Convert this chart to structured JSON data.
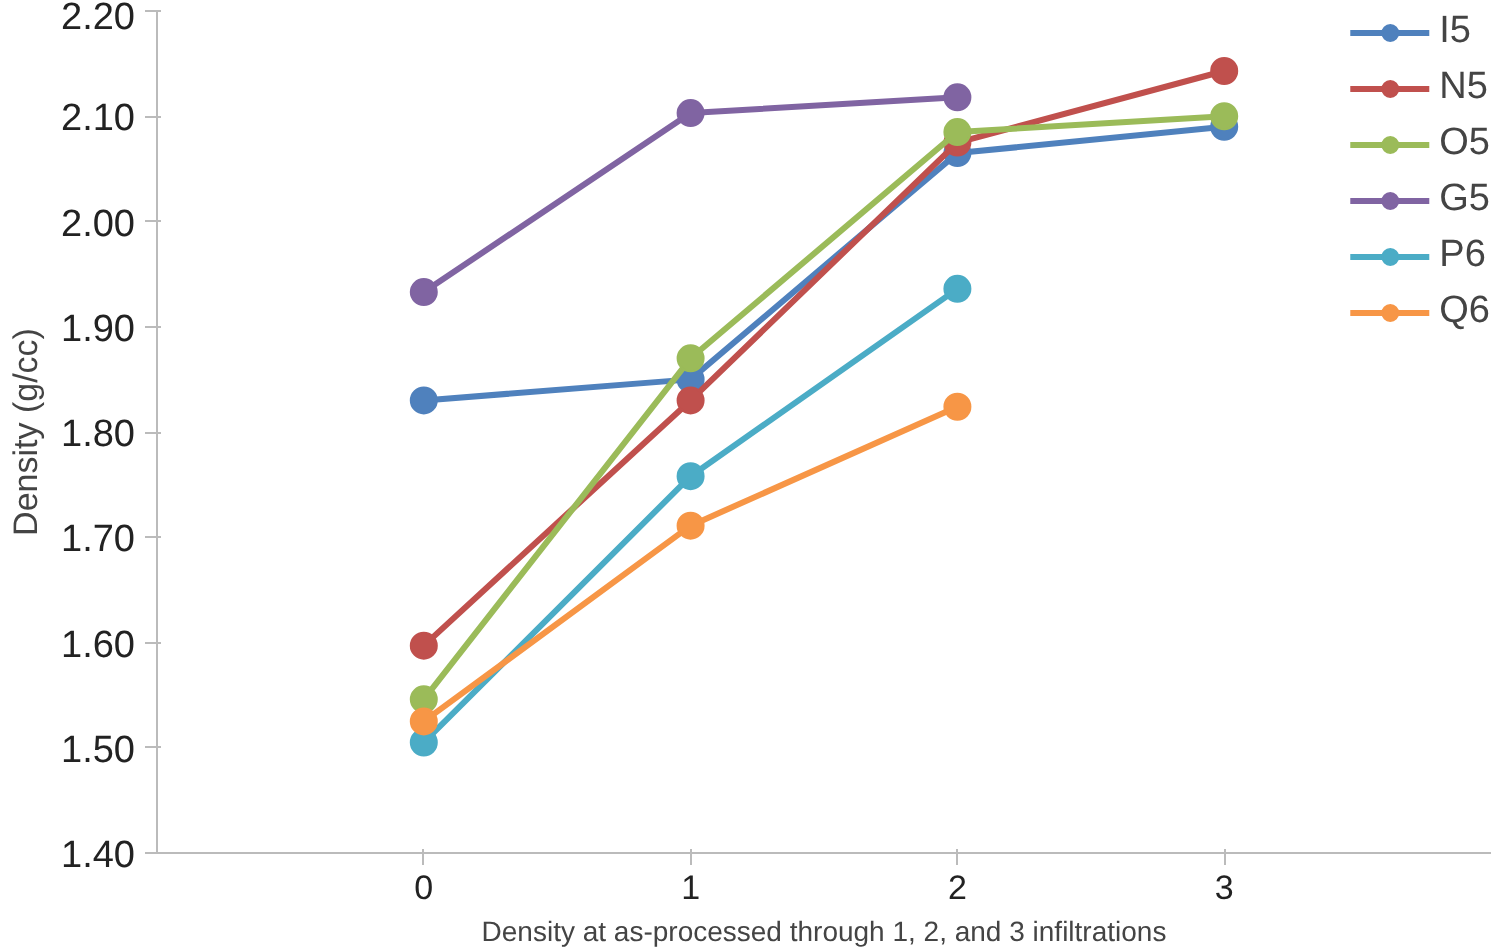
{
  "chart_data": {
    "type": "line",
    "xlabel": "Density at as-processed through 1, 2, and 3 infiltrations",
    "ylabel": "Density (g/cc)",
    "x": [
      0,
      1,
      2,
      3
    ],
    "series": [
      {
        "name": "I5",
        "color": "#4f81bd",
        "values": [
          1.83,
          1.85,
          2.065,
          2.09
        ]
      },
      {
        "name": "N5",
        "color": "#c0504d",
        "values": [
          1.597,
          1.83,
          2.075,
          2.143
        ]
      },
      {
        "name": "O5",
        "color": "#9bbb59",
        "values": [
          1.546,
          1.87,
          2.085,
          2.1
        ]
      },
      {
        "name": "G5",
        "color": "#8064a2",
        "values": [
          1.933,
          2.103,
          2.118,
          null
        ]
      },
      {
        "name": "P6",
        "color": "#4bacc6",
        "values": [
          1.505,
          1.758,
          1.936,
          null
        ]
      },
      {
        "name": "Q6",
        "color": "#f79646",
        "values": [
          1.525,
          1.711,
          1.824,
          null
        ]
      }
    ],
    "xlim": [
      -1,
      4
    ],
    "xticks": [
      0,
      1,
      2,
      3
    ],
    "ylim": [
      1.4,
      2.2
    ],
    "yticks": [
      {
        "value": 1.4,
        "label": "1.40"
      },
      {
        "value": 1.5,
        "label": "1.50"
      },
      {
        "value": 1.6,
        "label": "1.60"
      },
      {
        "value": 1.7,
        "label": "1.70"
      },
      {
        "value": 1.8,
        "label": "1.80"
      },
      {
        "value": 1.9,
        "label": "1.90"
      },
      {
        "value": 2.0,
        "label": "2.00"
      },
      {
        "value": 2.1,
        "label": "2.10"
      },
      {
        "value": 2.2,
        "label": "2.20"
      }
    ],
    "grid": false,
    "legend": "top right",
    "marker": "circle",
    "line_style": "solid"
  }
}
